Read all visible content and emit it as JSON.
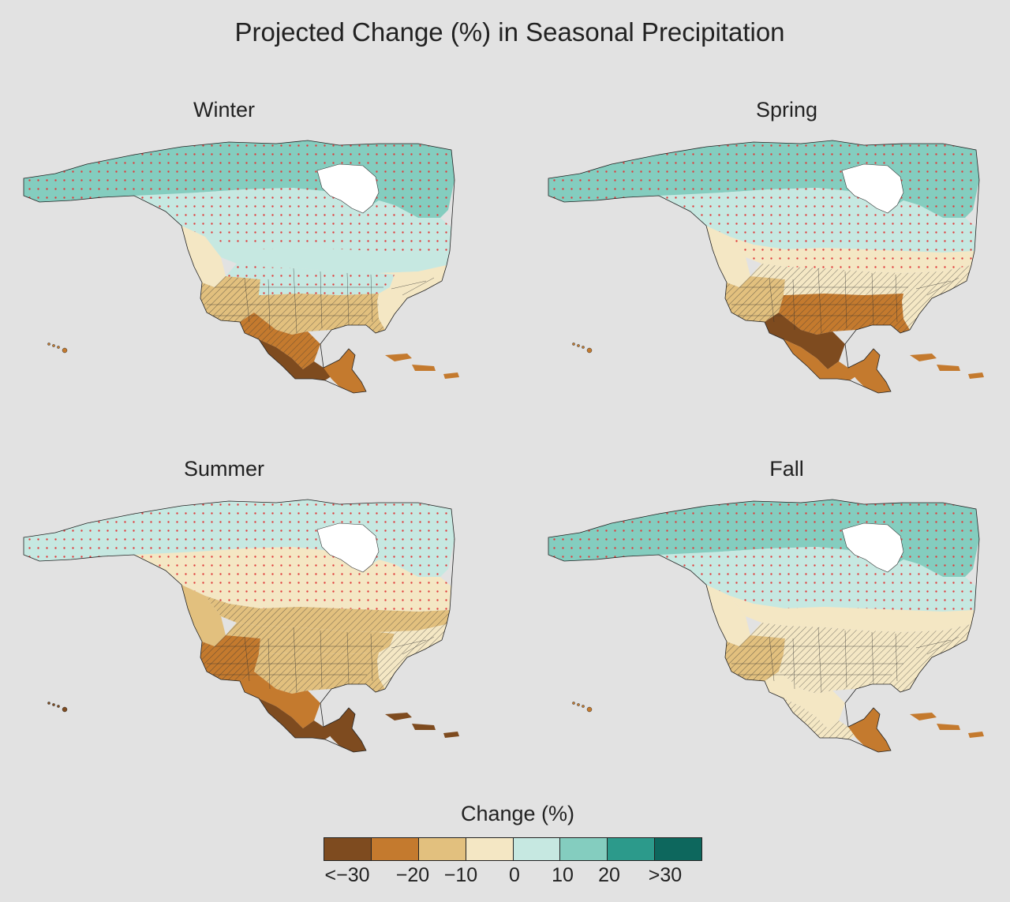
{
  "title": "Projected Change (%) in Seasonal Precipitation",
  "panels": [
    {
      "id": "winter",
      "label": "Winter",
      "regions": {
        "arctic": 5,
        "northcan": 4,
        "canadasouth": 4,
        "pacific": 3,
        "westus": 2,
        "northus": 4,
        "eastus": 3,
        "southus": 2,
        "mexnorth": 1,
        "mexsouth": 0,
        "central": 1,
        "caribbean": 1
      }
    },
    {
      "id": "spring",
      "label": "Spring",
      "regions": {
        "arctic": 5,
        "northcan": 4,
        "canadasouth": 3,
        "pacific": 3,
        "westus": 2,
        "northus": 3,
        "eastus": 3,
        "southus": 1,
        "mexnorth": 0,
        "mexsouth": 1,
        "central": 1,
        "caribbean": 1
      }
    },
    {
      "id": "summer",
      "label": "Summer",
      "regions": {
        "arctic": 4,
        "northcan": 3,
        "canadasouth": 2,
        "pacific": 2,
        "westus": 1,
        "northus": 2,
        "eastus": 3,
        "southus": 2,
        "mexnorth": 1,
        "mexsouth": 0,
        "central": 0,
        "caribbean": 0
      }
    },
    {
      "id": "fall",
      "label": "Fall",
      "regions": {
        "arctic": 5,
        "northcan": 4,
        "canadasouth": 3,
        "pacific": 3,
        "westus": 2,
        "northus": 3,
        "eastus": 3,
        "southus": 3,
        "mexnorth": 3,
        "mexsouth": 3,
        "central": 1,
        "caribbean": 1
      }
    }
  ],
  "legend": {
    "title": "Change (%)",
    "colors": [
      "#7e4b1f",
      "#c47a2e",
      "#e2c07e",
      "#f4e7c4",
      "#c6e8e1",
      "#84cdbf",
      "#2c9a8b",
      "#0d675d"
    ],
    "ticks": [
      "<−30",
      "−20",
      "−10",
      "0",
      "10",
      "20",
      ">30"
    ]
  }
}
